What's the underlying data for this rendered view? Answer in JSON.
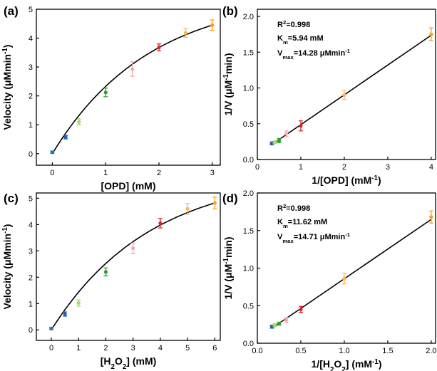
{
  "colors": [
    "#1f77b4",
    "#2a5fa8",
    "#a6d96a",
    "#2ca02c",
    "#f4a6b0",
    "#d62728",
    "#ffb74d",
    "#ff9f1a"
  ],
  "chart_data": [
    {
      "id": "a",
      "label": "(a)",
      "type": "scatter",
      "xlabel": "[OPD] (mM)",
      "ylabel_parts": [
        "Velocity (μMmin",
        "-1",
        ")"
      ],
      "xlim": [
        -0.3,
        3.15
      ],
      "ylim": [
        -0.4,
        5
      ],
      "xticks": [
        0,
        1,
        2,
        3
      ],
      "yticks": [
        0,
        1,
        2,
        3,
        4,
        5
      ],
      "x": [
        0,
        0.25,
        0.5,
        1,
        1.5,
        2,
        2.5,
        3
      ],
      "y": [
        0.05,
        0.57,
        1.1,
        2.12,
        2.93,
        3.68,
        4.18,
        4.45
      ],
      "err": [
        0.04,
        0.06,
        0.1,
        0.15,
        0.25,
        0.12,
        0.15,
        0.18
      ],
      "fit": "mm",
      "vmax": 14.28,
      "km": 5.94
    },
    {
      "id": "b",
      "label": "(b)",
      "type": "scatter",
      "xlabel_parts": [
        "1/[OPD] (mM",
        "-1",
        ")"
      ],
      "ylabel_parts": [
        "1/V (μM",
        "-1",
        "min)"
      ],
      "xlim": [
        0,
        4.1
      ],
      "ylim": [
        0,
        2.1
      ],
      "xticks": [
        0,
        1,
        2,
        3,
        4
      ],
      "yticks": [
        0.0,
        0.5,
        1.0,
        1.5,
        2.0
      ],
      "x": [
        0.333,
        0.4,
        0.5,
        0.667,
        1,
        2,
        4
      ],
      "y": [
        0.225,
        0.24,
        0.265,
        0.36,
        0.47,
        0.9,
        1.75
      ],
      "err": [
        0.02,
        0.02,
        0.03,
        0.04,
        0.07,
        0.06,
        0.09
      ],
      "fit": "linear",
      "slope": 0.4167,
      "intercept": 0.07,
      "annotations": {
        "r2_parts": [
          "R",
          "2",
          "=0.998"
        ],
        "km_parts": [
          "K",
          "m",
          "=5.94 mM"
        ],
        "vmax_parts": [
          "V",
          "max",
          "=14.28 μMmin",
          "-1"
        ]
      }
    },
    {
      "id": "c",
      "label": "(c)",
      "type": "scatter",
      "xlabel_parts": [
        "[H",
        "2",
        "O",
        "2",
        "] (mM)"
      ],
      "ylabel_parts": [
        "Velocity (μMmin",
        "-1",
        ")"
      ],
      "xlim": [
        -0.55,
        6.2
      ],
      "ylim": [
        -0.4,
        5.2
      ],
      "xticks": [
        0,
        1,
        2,
        3,
        4,
        5,
        6
      ],
      "yticks": [
        0,
        1,
        2,
        3,
        4,
        5
      ],
      "x": [
        0,
        0.5,
        1,
        2,
        3,
        4,
        5,
        6
      ],
      "y": [
        0.05,
        0.6,
        1.02,
        2.2,
        3.1,
        4.05,
        4.6,
        4.82
      ],
      "err": [
        0.04,
        0.08,
        0.12,
        0.15,
        0.2,
        0.18,
        0.2,
        0.22
      ],
      "fit": "mm",
      "vmax": 14.71,
      "km": 11.62
    },
    {
      "id": "d",
      "label": "(d)",
      "type": "scatter",
      "xlabel_parts": [
        "1/[H",
        "2",
        "O",
        "2",
        "] (mM",
        "-1",
        ")"
      ],
      "ylabel_parts": [
        "1/V (μM",
        "-1",
        "min)"
      ],
      "xlim": [
        0,
        2.05
      ],
      "ylim": [
        0,
        2.0
      ],
      "xticks": [
        0.0,
        0.5,
        1.0,
        1.5,
        2.0
      ],
      "yticks": [
        0.0,
        0.5,
        1.0,
        1.5,
        2.0
      ],
      "x": [
        0.167,
        0.2,
        0.25,
        0.333,
        0.5,
        1,
        2
      ],
      "y": [
        0.22,
        0.24,
        0.26,
        0.31,
        0.45,
        0.86,
        1.68
      ],
      "err": [
        0.02,
        0.02,
        0.02,
        0.03,
        0.04,
        0.07,
        0.08
      ],
      "fit": "linear",
      "slope": 0.79,
      "intercept": 0.068,
      "annotations": {
        "r2_parts": [
          "R",
          "2",
          "=0.998"
        ],
        "km_parts": [
          "K",
          "m",
          "=11.62 mM"
        ],
        "vmax_parts": [
          "V",
          "max",
          "=14.71 μMmin",
          "-1"
        ]
      }
    }
  ]
}
